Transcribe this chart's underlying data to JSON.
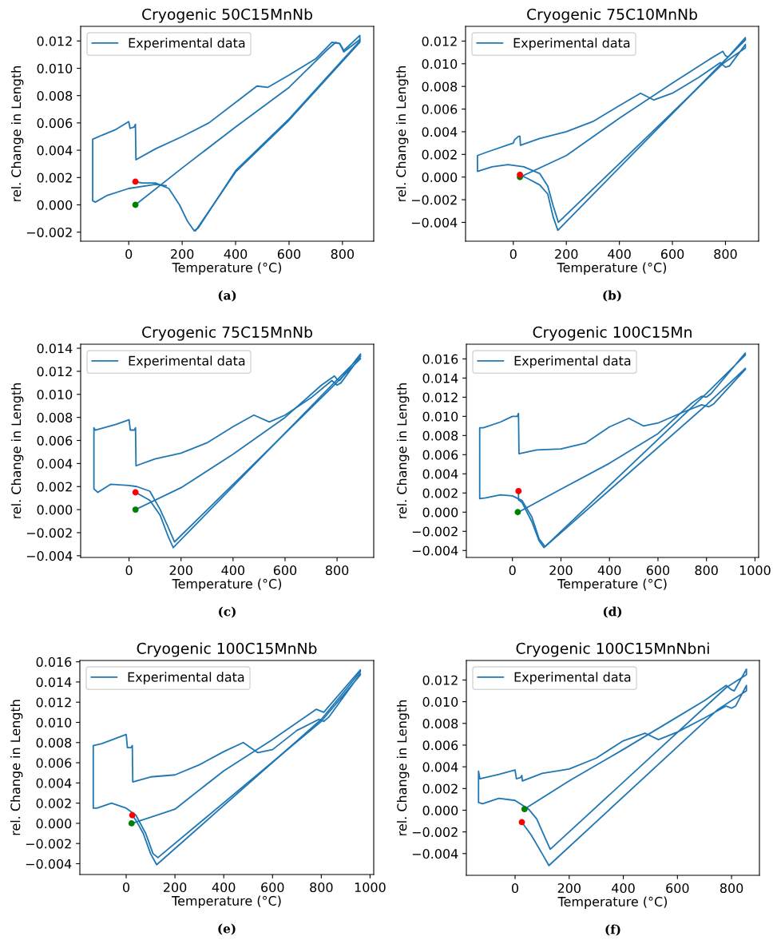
{
  "chart_data": [
    {
      "type": "line",
      "title": "Cryogenic 50C15MnNb",
      "xlabel": "Temperature (°C)",
      "ylabel": "rel. Change in Length",
      "annotations": [
        "(a)"
      ],
      "legend": "top left",
      "xlim": [
        -180,
        917
      ],
      "ylim": [
        -0.00266,
        0.01307
      ],
      "xticks": [
        0,
        200,
        400,
        600,
        800
      ],
      "yticks": [
        {
          "value": -0.002,
          "label": "−0.002"
        },
        {
          "value": 0,
          "label": "0.000"
        },
        {
          "value": 0.002,
          "label": "0.002"
        },
        {
          "value": 0.004,
          "label": "0.004"
        },
        {
          "value": 0.006,
          "label": "0.006"
        },
        {
          "value": 0.008,
          "label": "0.008"
        },
        {
          "value": 0.01,
          "label": "0.010"
        },
        {
          "value": 0.012,
          "label": "0.012"
        }
      ],
      "series": [
        {
          "name": "Experimental data",
          "color": "#1f77b4",
          "x": [
            25,
            200,
            400,
            600,
            740,
            775,
            790,
            805,
            865,
            865,
            600,
            400,
            260,
            245,
            220,
            190,
            150,
            100,
            50,
            25
          ],
          "values": [
            0,
            0.0027,
            0.0057,
            0.0086,
            0.0113,
            0.0119,
            0.0118,
            0.0113,
            0.0124,
            0.012,
            0.0063,
            0.0025,
            -0.0017,
            -0.0019,
            -0.0012,
            0,
            0.0012,
            0.0016,
            0.0016,
            0.0017
          ]
        },
        {
          "color": "#1f77b4",
          "x": [
            140,
            100,
            0,
            -80,
            -125,
            -135,
            -135,
            -100,
            -50,
            0,
            5,
            20,
            25,
            27,
            100,
            200,
            300,
            400,
            480,
            520,
            600,
            700,
            760,
            790,
            805,
            865,
            865,
            600,
            400,
            250
          ],
          "values": [
            0.0014,
            0.0015,
            0.0012,
            0.0007,
            0.0002,
            0.0003,
            0.0048,
            0.0051,
            0.0055,
            0.0061,
            0.0056,
            0.0057,
            0.0059,
            0.0033,
            0.0041,
            0.005,
            0.006,
            0.0075,
            0.0087,
            0.0086,
            0.0095,
            0.0107,
            0.0119,
            0.0118,
            0.0112,
            0.0121,
            0.0119,
            0.0062,
            0.0024,
            -0.0019
          ]
        },
        {
          "type": "scatter",
          "marker": "circle",
          "color": "#ff0000",
          "x": [
            25
          ],
          "values": [
            0.0017
          ]
        },
        {
          "type": "scatter",
          "marker": "circle",
          "color": "#008000",
          "x": [
            25
          ],
          "values": [
            0
          ]
        }
      ]
    },
    {
      "type": "line",
      "title": "Cryogenic 75C10MnNb",
      "xlabel": "Temperature (°C)",
      "ylabel": "rel. Change in Length",
      "annotations": [
        "(b)"
      ],
      "legend": "top left",
      "xlim": [
        -180,
        925
      ],
      "ylim": [
        -0.00566,
        0.0133
      ],
      "xticks": [
        0,
        200,
        400,
        600,
        800
      ],
      "yticks": [
        {
          "value": -0.004,
          "label": "−0.004"
        },
        {
          "value": -0.002,
          "label": "−0.002"
        },
        {
          "value": 0,
          "label": "0.000"
        },
        {
          "value": 0.002,
          "label": "0.002"
        },
        {
          "value": 0.004,
          "label": "0.004"
        },
        {
          "value": 0.006,
          "label": "0.006"
        },
        {
          "value": 0.008,
          "label": "0.008"
        },
        {
          "value": 0.01,
          "label": "0.010"
        },
        {
          "value": 0.012,
          "label": "0.012"
        }
      ],
      "series": [
        {
          "name": "Experimental data",
          "color": "#1f77b4",
          "x": [
            25,
            200,
            400,
            600,
            740,
            790,
            800,
            810,
            875,
            875,
            780,
            168,
            150,
            130,
            100,
            60,
            25
          ],
          "values": [
            0,
            0.0019,
            0.0052,
            0.0083,
            0.0104,
            0.0111,
            0.0107,
            0.0106,
            0.0123,
            0.0121,
            0.0099,
            -0.0047,
            -0.0035,
            -0.0015,
            -0.0007,
            -0.0002,
            0.0002
          ]
        },
        {
          "color": "#1f77b4",
          "x": [
            875,
            875,
            790,
            170,
            150,
            130,
            100,
            40,
            -20,
            -80,
            -135,
            -135,
            -100,
            0,
            5,
            20,
            25,
            27,
            100,
            200,
            300,
            400,
            480,
            530,
            600,
            700,
            780,
            800,
            815,
            875
          ],
          "values": [
            0.0116,
            0.0114,
            0.01,
            -0.004,
            -0.0025,
            -0.0008,
            0.0003,
            0.0009,
            0.0011,
            0.0009,
            0.0005,
            0.0019,
            0.0022,
            0.003,
            0.0033,
            0.0036,
            0.0036,
            0.0028,
            0.0034,
            0.004,
            0.0049,
            0.0063,
            0.0074,
            0.0068,
            0.0074,
            0.0088,
            0.0101,
            0.0097,
            0.0098,
            0.0117
          ]
        },
        {
          "type": "scatter",
          "marker": "circle",
          "color": "#008000",
          "x": [
            25
          ],
          "values": [
            0
          ]
        },
        {
          "type": "scatter",
          "marker": "circle",
          "color": "#ff0000",
          "x": [
            25
          ],
          "values": [
            0.0002
          ]
        }
      ]
    },
    {
      "type": "line",
      "title": "Cryogenic 75C15MnNb",
      "xlabel": "Temperature (°C)",
      "ylabel": "rel. Change in Length",
      "annotations": [
        "(c)"
      ],
      "legend": "top left",
      "xlim": [
        -186,
        941
      ],
      "ylim": [
        -0.00415,
        0.01435
      ],
      "xticks": [
        0,
        200,
        400,
        600,
        800
      ],
      "yticks": [
        {
          "value": -0.004,
          "label": "−0.004"
        },
        {
          "value": -0.002,
          "label": "−0.002"
        },
        {
          "value": 0,
          "label": "0.000"
        },
        {
          "value": 0.002,
          "label": "0.002"
        },
        {
          "value": 0.004,
          "label": "0.004"
        },
        {
          "value": 0.006,
          "label": "0.006"
        },
        {
          "value": 0.008,
          "label": "0.008"
        },
        {
          "value": 0.01,
          "label": "0.010"
        },
        {
          "value": 0.012,
          "label": "0.012"
        },
        {
          "value": 0.014,
          "label": "0.014"
        }
      ],
      "series": [
        {
          "name": "Experimental data",
          "color": "#1f77b4",
          "x": [
            25,
            200,
            400,
            600,
            740,
            790,
            800,
            810,
            890,
            890,
            780,
            170,
            150,
            120,
            80,
            25
          ],
          "values": [
            0,
            0.0019,
            0.0048,
            0.008,
            0.0108,
            0.0116,
            0.0113,
            0.0112,
            0.0135,
            0.0133,
            0.0108,
            -0.0033,
            -0.0023,
            -0.0005,
            0.0008,
            0.0015
          ]
        },
        {
          "color": "#1f77b4",
          "x": [
            890,
            780,
            175,
            150,
            120,
            80,
            30,
            0,
            -70,
            -120,
            -135,
            -135,
            -130,
            -50,
            0,
            5,
            20,
            25,
            27,
            100,
            200,
            300,
            400,
            480,
            540,
            600,
            700,
            780,
            800,
            815,
            890
          ],
          "values": [
            0.0131,
            0.0106,
            -0.0028,
            -0.0015,
            0,
            0.0016,
            0.002,
            0.0021,
            0.0022,
            0.0015,
            0.0018,
            0.0071,
            0.0069,
            0.0074,
            0.0078,
            0.0069,
            0.0069,
            0.0071,
            0.0038,
            0.0044,
            0.0049,
            0.0058,
            0.0072,
            0.0082,
            0.0076,
            0.0082,
            0.0097,
            0.0112,
            0.0108,
            0.011,
            0.0133
          ]
        },
        {
          "type": "scatter",
          "marker": "circle",
          "color": "#ff0000",
          "x": [
            25
          ],
          "values": [
            0.0015
          ]
        },
        {
          "type": "scatter",
          "marker": "circle",
          "color": "#008000",
          "x": [
            25
          ],
          "values": [
            0
          ]
        }
      ]
    },
    {
      "type": "line",
      "title": "Cryogenic 100C15Mn",
      "xlabel": "Temperature (°C)",
      "ylabel": "rel. Change in Length",
      "annotations": [
        "(d)"
      ],
      "legend": "top left",
      "xlim": [
        -190,
        1015
      ],
      "ylim": [
        -0.00473,
        0.01753
      ],
      "xticks": [
        0,
        200,
        400,
        600,
        800,
        1000
      ],
      "yticks": [
        {
          "value": -0.004,
          "label": "−0.004"
        },
        {
          "value": -0.002,
          "label": "−0.002"
        },
        {
          "value": 0,
          "label": "0.000"
        },
        {
          "value": 0.002,
          "label": "0.002"
        },
        {
          "value": 0.004,
          "label": "0.004"
        },
        {
          "value": 0.006,
          "label": "0.006"
        },
        {
          "value": 0.008,
          "label": "0.008"
        },
        {
          "value": 0.01,
          "label": "0.010"
        },
        {
          "value": 0.012,
          "label": "0.012"
        },
        {
          "value": 0.014,
          "label": "0.014"
        },
        {
          "value": 0.016,
          "label": "0.016"
        }
      ],
      "series": [
        {
          "name": "Experimental data",
          "color": "#1f77b4",
          "x": [
            25,
            200,
            400,
            600,
            740,
            780,
            800,
            820,
            960,
            960,
            800,
            130,
            110,
            80,
            40,
            25,
            25
          ],
          "values": [
            0,
            0.0024,
            0.0051,
            0.0082,
            0.0114,
            0.0121,
            0.012,
            0.0124,
            0.0166,
            0.0164,
            0.0124,
            -0.0037,
            -0.003,
            -0.001,
            0.001,
            0.0013,
            0.0022
          ]
        },
        {
          "color": "#1f77b4",
          "x": [
            960,
            800,
            135,
            110,
            80,
            40,
            0,
            -50,
            -110,
            -135,
            -135,
            -120,
            -50,
            0,
            20,
            25,
            27,
            100,
            200,
            300,
            400,
            480,
            540,
            600,
            700,
            780,
            810,
            830,
            960
          ],
          "values": [
            0.015,
            0.0112,
            -0.0036,
            -0.0028,
            -0.0005,
            0.0012,
            0.0017,
            0.0018,
            0.0015,
            0.0014,
            0.0088,
            0.0088,
            0.0094,
            0.01,
            0.01,
            0.0103,
            0.0061,
            0.0065,
            0.0066,
            0.0072,
            0.0089,
            0.0098,
            0.009,
            0.0093,
            0.0104,
            0.0112,
            0.011,
            0.0113,
            0.0149
          ]
        },
        {
          "type": "scatter",
          "marker": "circle",
          "color": "#ff0000",
          "x": [
            25
          ],
          "values": [
            0.0022
          ]
        },
        {
          "type": "scatter",
          "marker": "circle",
          "color": "#008000",
          "x": [
            22
          ],
          "values": [
            0
          ]
        }
      ]
    },
    {
      "type": "line",
      "title": "Cryogenic 100C15MnNb",
      "xlabel": "Temperature (°C)",
      "ylabel": "rel. Change in Length",
      "annotations": [
        "(e)"
      ],
      "legend": "top left",
      "xlim": [
        -190,
        1015
      ],
      "ylim": [
        -0.00507,
        0.01613
      ],
      "xticks": [
        0,
        200,
        400,
        600,
        800,
        1000
      ],
      "yticks": [
        {
          "value": -0.004,
          "label": "−0.004"
        },
        {
          "value": -0.002,
          "label": "−0.002"
        },
        {
          "value": 0,
          "label": "0.000"
        },
        {
          "value": 0.002,
          "label": "0.002"
        },
        {
          "value": 0.004,
          "label": "0.004"
        },
        {
          "value": 0.006,
          "label": "0.006"
        },
        {
          "value": 0.008,
          "label": "0.008"
        },
        {
          "value": 0.01,
          "label": "0.010"
        },
        {
          "value": 0.012,
          "label": "0.012"
        },
        {
          "value": 0.014,
          "label": "0.014"
        },
        {
          "value": 0.016,
          "label": "0.016"
        }
      ],
      "series": [
        {
          "name": "Experimental data",
          "color": "#1f77b4",
          "x": [
            25,
            200,
            400,
            600,
            780,
            790,
            810,
            960,
            960,
            800,
            125,
            100,
            70,
            40,
            25
          ],
          "values": [
            0,
            0.0014,
            0.0052,
            0.0083,
            0.0113,
            0.0112,
            0.011,
            0.0152,
            0.015,
            0.0103,
            -0.0041,
            -0.003,
            -0.001,
            0.0003,
            0.0008
          ]
        },
        {
          "color": "#1f77b4",
          "x": [
            960,
            800,
            130,
            110,
            80,
            40,
            0,
            -60,
            -120,
            -135,
            -135,
            -100,
            0,
            5,
            20,
            25,
            27,
            100,
            200,
            300,
            400,
            480,
            540,
            600,
            700,
            790,
            810,
            830,
            960
          ],
          "values": [
            0.0147,
            0.0101,
            -0.0034,
            -0.003,
            -0.001,
            0.0008,
            0.0015,
            0.002,
            0.0015,
            0.0015,
            0.0077,
            0.0079,
            0.0088,
            0.0075,
            0.0075,
            0.0077,
            0.0041,
            0.0046,
            0.0048,
            0.0058,
            0.0071,
            0.008,
            0.007,
            0.0073,
            0.0092,
            0.0103,
            0.0101,
            0.0105,
            0.0148
          ]
        },
        {
          "type": "scatter",
          "marker": "circle",
          "color": "#ff0000",
          "x": [
            25
          ],
          "values": [
            0.0008
          ]
        },
        {
          "type": "scatter",
          "marker": "circle",
          "color": "#008000",
          "x": [
            22
          ],
          "values": [
            0
          ]
        }
      ]
    },
    {
      "type": "line",
      "title": "Cryogenic 100C15MnNbni",
      "xlabel": "Temperature (°C)",
      "ylabel": "rel. Change in Length",
      "annotations": [
        "(f)"
      ],
      "legend": "top left",
      "xlim": [
        -180,
        903
      ],
      "ylim": [
        -0.006,
        0.0138
      ],
      "xticks": [
        0,
        200,
        400,
        600,
        800
      ],
      "yticks": [
        {
          "value": -0.004,
          "label": "−0.004"
        },
        {
          "value": -0.002,
          "label": "−0.002"
        },
        {
          "value": 0,
          "label": "0.000"
        },
        {
          "value": 0.002,
          "label": "0.002"
        },
        {
          "value": 0.004,
          "label": "0.004"
        },
        {
          "value": 0.006,
          "label": "0.006"
        },
        {
          "value": 0.008,
          "label": "0.008"
        },
        {
          "value": 0.01,
          "label": "0.010"
        },
        {
          "value": 0.012,
          "label": "0.012"
        }
      ],
      "series": [
        {
          "name": "Experimental data",
          "color": "#1f77b4",
          "x": [
            35,
            200,
            400,
            600,
            700,
            780,
            800,
            810,
            855,
            855,
            780,
            130,
            110,
            80,
            50,
            0,
            -60,
            -120,
            -135,
            -135,
            -130,
            -60,
            0,
            5,
            20,
            25,
            27,
            100,
            200,
            300,
            400,
            480,
            530,
            600,
            700,
            780,
            800,
            815,
            855,
            855,
            750,
            125,
            100,
            60,
            25
          ],
          "values": [
            0.0001,
            0.0027,
            0.0056,
            0.0086,
            0.0101,
            0.0115,
            0.0111,
            0.011,
            0.013,
            0.0125,
            0.0113,
            -0.0036,
            -0.0025,
            -0.0008,
            0.0001,
            0.0009,
            0.0011,
            0.0006,
            0.0007,
            0.0036,
            0.0029,
            0.0033,
            0.0037,
            0.0029,
            0.003,
            0.0032,
            0.0027,
            0.0034,
            0.0038,
            0.0048,
            0.0064,
            0.0071,
            0.0065,
            0.0072,
            0.0085,
            0.0096,
            0.0094,
            0.0096,
            0.0115,
            0.011,
            0.0093,
            -0.0051,
            -0.004,
            -0.0023,
            -0.0011
          ]
        },
        {
          "type": "scatter",
          "marker": "circle",
          "color": "#ff0000",
          "x": [
            25
          ],
          "values": [
            -0.0011
          ]
        },
        {
          "type": "scatter",
          "marker": "circle",
          "color": "#008000",
          "x": [
            35
          ],
          "values": [
            0.0001
          ]
        }
      ]
    }
  ]
}
